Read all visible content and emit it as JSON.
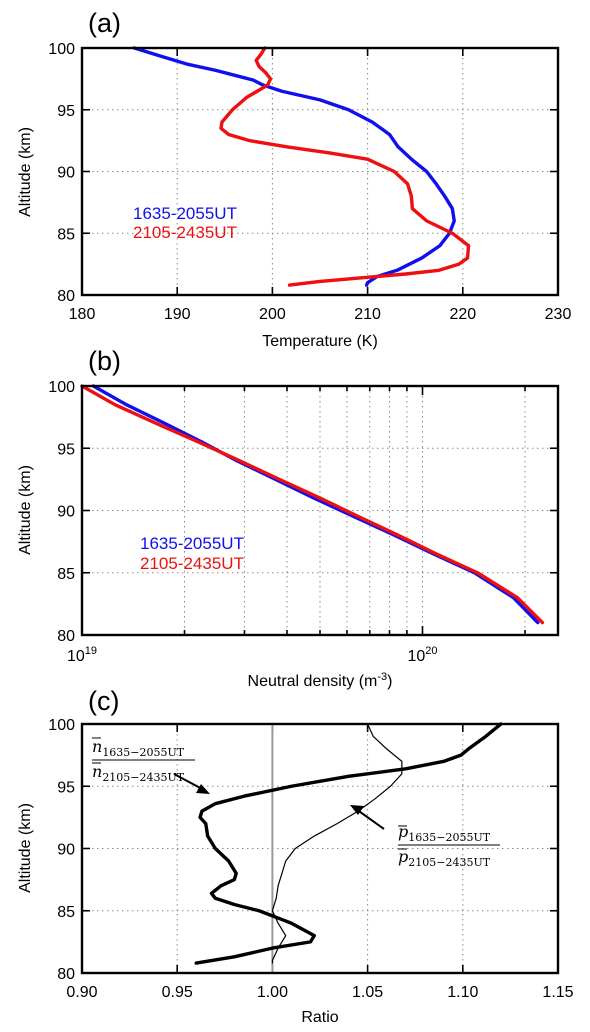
{
  "colors": {
    "blue": "#1010ee",
    "red": "#ee1010",
    "black": "#000000",
    "ref_line": "#9a9a9a"
  },
  "chart_data": [
    {
      "panel": "(a)",
      "type": "line",
      "xlabel": "Temperature (K)",
      "ylabel": "Altitude (km)",
      "xlim": [
        180,
        230
      ],
      "ylim": [
        80,
        100
      ],
      "xticks": [
        180,
        190,
        200,
        210,
        220,
        230
      ],
      "yticks": [
        80,
        85,
        90,
        95,
        100
      ],
      "grid": true,
      "legend_placement": "left-middle",
      "series": [
        {
          "name": "1635-2055UT",
          "color": "#1010ee",
          "x": [
            185.5,
            188,
            191,
            194,
            196,
            198,
            199,
            201,
            205,
            208,
            210.5,
            212.3,
            213.2,
            214.6,
            216.2,
            217.2,
            218.1,
            218.9,
            219.1,
            218.6,
            217.6,
            215.7,
            213.1,
            211.0,
            210.0,
            209.9
          ],
          "y": [
            100,
            99.4,
            98.7,
            98.2,
            97.8,
            97.4,
            97.0,
            96.5,
            95.8,
            95.0,
            94.0,
            93.0,
            92.0,
            91.0,
            90.0,
            89.0,
            88.0,
            87.0,
            86.0,
            85.0,
            84.0,
            83.0,
            82.0,
            81.5,
            81.0,
            80.8
          ]
        },
        {
          "name": "2105-2435UT",
          "color": "#ee1010",
          "x": [
            199.2,
            198.8,
            198.3,
            198.6,
            199.3,
            199.8,
            199.5,
            198.4,
            197.3,
            195.8,
            194.7,
            194.6,
            195.4,
            197.6,
            201.5,
            206.0,
            210.0,
            212.8,
            214.2,
            214.6,
            214.7,
            216.2,
            218.9,
            220.6,
            220.5,
            219.6,
            217.5,
            214.0,
            209.5,
            205.0,
            201.8
          ],
          "y": [
            100,
            99.5,
            99.0,
            98.5,
            98.0,
            97.5,
            97.0,
            96.5,
            96.0,
            95.0,
            94.0,
            93.5,
            93.0,
            92.5,
            92.0,
            91.5,
            91.0,
            90.0,
            89.0,
            88.0,
            87.0,
            86.0,
            85.0,
            84.0,
            83.0,
            82.5,
            82.0,
            81.7,
            81.4,
            81.1,
            80.8
          ]
        }
      ]
    },
    {
      "panel": "(b)",
      "type": "line",
      "xlabel": "Neutral density (m",
      "xlabel_sup": "-3",
      "xlabel_end": ")",
      "ylabel": "Altitude (km)",
      "x_scale": "log",
      "xlim": [
        1e+19,
        2.5e+20
      ],
      "ylim": [
        80,
        100
      ],
      "xticks_major": [
        {
          "value": 1e+19,
          "base": "10",
          "exp": "19"
        },
        {
          "value": 1e+20,
          "base": "10",
          "exp": "20"
        }
      ],
      "xticks_minor": [
        2e+19,
        3e+19,
        4e+19,
        5e+19,
        6e+19,
        7e+19,
        8e+19,
        9e+19,
        2e+20
      ],
      "yticks": [
        80,
        85,
        90,
        95,
        100
      ],
      "grid": true,
      "legend_placement": "left-middle",
      "series": [
        {
          "name": "1635-2055UT",
          "color": "#1010ee",
          "x": [
            1.08e+19,
            1.35e+19,
            1.75e+19,
            2.25e+19,
            2.85e+19,
            3.7e+19,
            4.8e+19,
            6.3e+19,
            8.3e+19,
            1.08e+20,
            1.42e+20,
            1.85e+20,
            2.18e+20
          ],
          "y": [
            100,
            98.5,
            97,
            95.5,
            94,
            92.5,
            91,
            89.5,
            88,
            86.5,
            85,
            83,
            81
          ]
        },
        {
          "name": "2105-2435UT",
          "color": "#ee1010",
          "x": [
            1e+19,
            1.25e+19,
            1.65e+19,
            2.2e+19,
            2.9e+19,
            3.8e+19,
            5e+19,
            6.5e+19,
            8.5e+19,
            1.1e+20,
            1.45e+20,
            1.9e+20,
            2.25e+20
          ],
          "y": [
            100,
            98.5,
            97,
            95.5,
            94,
            92.5,
            91,
            89.5,
            88,
            86.5,
            85,
            83,
            81
          ]
        }
      ]
    },
    {
      "panel": "(c)",
      "type": "line",
      "xlabel": "Ratio",
      "ylabel": "Altitude (km)",
      "xlim": [
        0.9,
        1.15
      ],
      "ylim": [
        80,
        100
      ],
      "xticks": [
        "0.90",
        "0.95",
        "1.00",
        "1.05",
        "1.10",
        "1.15"
      ],
      "yticks": [
        80,
        85,
        90,
        95,
        100
      ],
      "grid": true,
      "reference_x": 1.0,
      "annotations": [
        {
          "id": "n",
          "symbol": "n",
          "numerator_sub": "1635−2055UT",
          "denominator_sub": "2105−2435UT"
        },
        {
          "id": "p",
          "symbol": "p",
          "numerator_sub": "1635−2055UT",
          "denominator_sub": "2105−2435UT"
        }
      ],
      "series": [
        {
          "id": "n_ratio",
          "color": "#000000",
          "width": "thick",
          "x": [
            1.12,
            1.112,
            1.103,
            1.099,
            1.09,
            1.07,
            1.04,
            1.01,
            0.985,
            0.97,
            0.963,
            0.962,
            0.965,
            0.966,
            0.97,
            0.977,
            0.981,
            0.98,
            0.973,
            0.968,
            0.97,
            0.98,
            0.993,
            1.01,
            1.022,
            1.02,
            1.0,
            0.98,
            0.96
          ],
          "y": [
            100,
            99.0,
            98.0,
            97.5,
            97.0,
            96.4,
            95.8,
            95.0,
            94.2,
            93.6,
            93.0,
            92.5,
            92.0,
            91.0,
            90.0,
            89.0,
            88.0,
            87.5,
            87.0,
            86.4,
            86.0,
            85.5,
            85.0,
            84.0,
            83.0,
            82.5,
            82.0,
            81.3,
            80.8
          ]
        },
        {
          "id": "p_ratio",
          "color": "#000000",
          "width": "thin",
          "x": [
            1.05,
            1.053,
            1.06,
            1.068,
            1.068,
            1.062,
            1.054,
            1.045,
            1.034,
            1.022,
            1.012,
            1.007,
            1.005,
            1.003,
            1.002,
            1.0,
            1.003,
            1.007,
            1.003,
            1.0,
            1.0
          ],
          "y": [
            100,
            99.0,
            98.0,
            97.0,
            96.0,
            95.0,
            94.0,
            93.0,
            92.0,
            91.0,
            90.0,
            89.0,
            88.0,
            87.0,
            86.0,
            85.0,
            84.0,
            83.0,
            82.0,
            81.0,
            80.8
          ]
        }
      ]
    }
  ]
}
